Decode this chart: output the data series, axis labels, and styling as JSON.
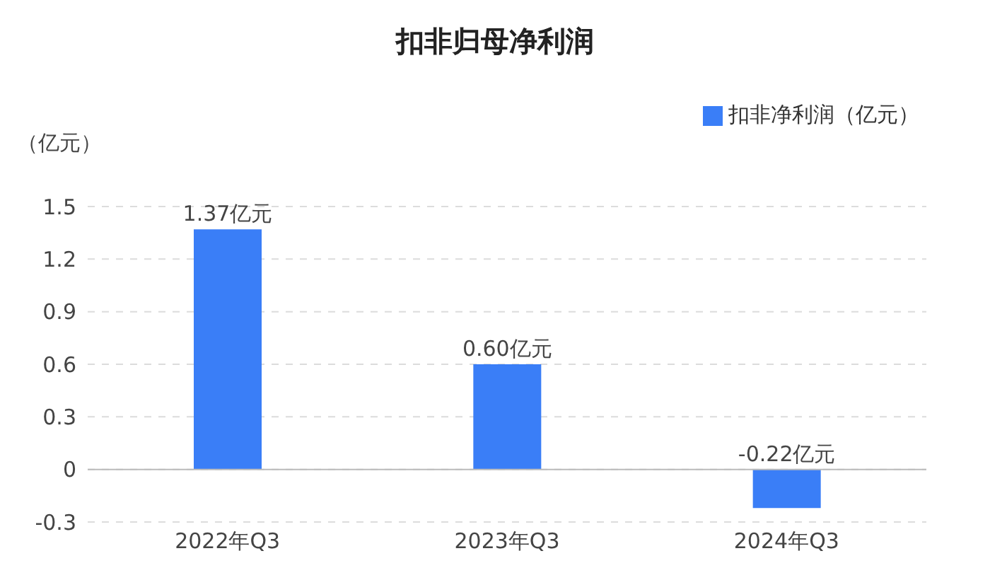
{
  "chart_data": {
    "type": "bar",
    "title": "扣非归母净利润",
    "ylabel": "（亿元）",
    "categories": [
      "2022年Q3",
      "2023年Q3",
      "2024年Q3"
    ],
    "series": [
      {
        "name": "扣非净利润（亿元）",
        "color": "#3a7ef7",
        "values": [
          1.37,
          0.6,
          -0.22
        ],
        "value_labels": [
          "1.37亿元",
          "0.60亿元",
          "-0.22亿元"
        ]
      }
    ],
    "ylim": [
      -0.3,
      1.5
    ],
    "yticks": [
      -0.3,
      0,
      0.3,
      0.6,
      0.9,
      1.2,
      1.5
    ],
    "grid": "y",
    "legend": "top right"
  }
}
